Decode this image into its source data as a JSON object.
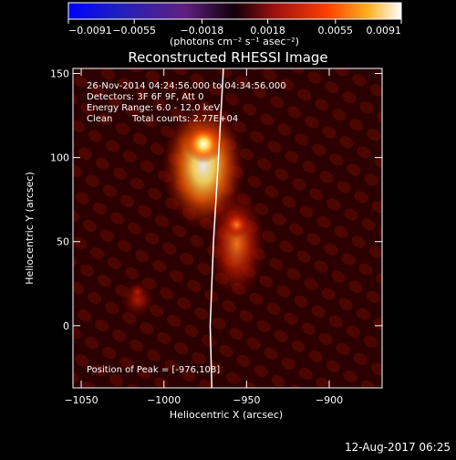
{
  "chart_data": {
    "type": "heatmap",
    "title": "Reconstructed RHESSI Image",
    "xlabel": "Heliocentric X (arcsec)",
    "ylabel": "Heliocentric Y (arcsec)",
    "xlim": [
      -1055,
      -868
    ],
    "ylim": [
      -37,
      153
    ],
    "x_ticks": [
      -1050,
      -1000,
      -950,
      -900
    ],
    "y_ticks": [
      0,
      50,
      100,
      150
    ],
    "x_tick_labels": [
      "−1050",
      "−1000",
      "−950",
      "−900"
    ],
    "y_tick_labels": [
      "0",
      "50",
      "100",
      "150"
    ],
    "colorbar": {
      "ticks": [
        -0.0091,
        -0.0055,
        -0.0018,
        0.0018,
        0.0055,
        0.0091
      ],
      "tick_labels": [
        "−0.0091",
        "−0.0055",
        "−0.0018",
        "0.0018",
        "0.0055",
        "0.0091"
      ],
      "units": "(photons cm⁻² s⁻¹ asec⁻²)"
    },
    "sources": [
      {
        "x": -976,
        "y": 108,
        "intensity": 1.0
      },
      {
        "x": -956,
        "y": 60,
        "intensity": 0.55
      },
      {
        "x": -1016,
        "y": 20,
        "intensity": 0.3
      }
    ],
    "limb": [
      [
        -971,
        -37
      ],
      [
        -972,
        0
      ],
      [
        -970,
        50
      ],
      [
        -967,
        100
      ],
      [
        -964,
        153
      ]
    ],
    "annotations": {
      "time_range": "26-Nov-2014 04:24:56.000 to 04:34:56.000",
      "detectors": "Detectors: 3F 6F 9F, Att 0",
      "energy": "Energy Range: 6.0 - 12.0 keV",
      "clean": "Clean",
      "counts": "Total counts: 2.77E+04",
      "peak": "Position of Peak = [-976,108]"
    }
  },
  "footer_timestamp": "12-Aug-2017 06:25"
}
